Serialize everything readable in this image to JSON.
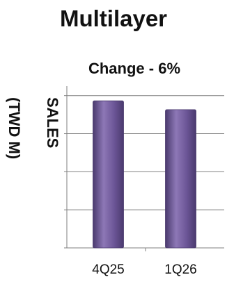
{
  "chart_data": {
    "type": "bar",
    "title": "Multilayer",
    "subtitle": "Change - 6%",
    "ylabel_line1": "SALES",
    "ylabel_line2": "(TWD M)",
    "categories": [
      "4Q25",
      "1Q26"
    ],
    "values": [
      100,
      94
    ],
    "ylim": [
      0,
      110
    ],
    "grid": true,
    "colors": {
      "bar": "#6b5596",
      "bar_light": "#8d77b6",
      "bar_dark": "#4a3a6e",
      "grid": "#7f7f7f",
      "axis": "#7f7f7f"
    }
  }
}
